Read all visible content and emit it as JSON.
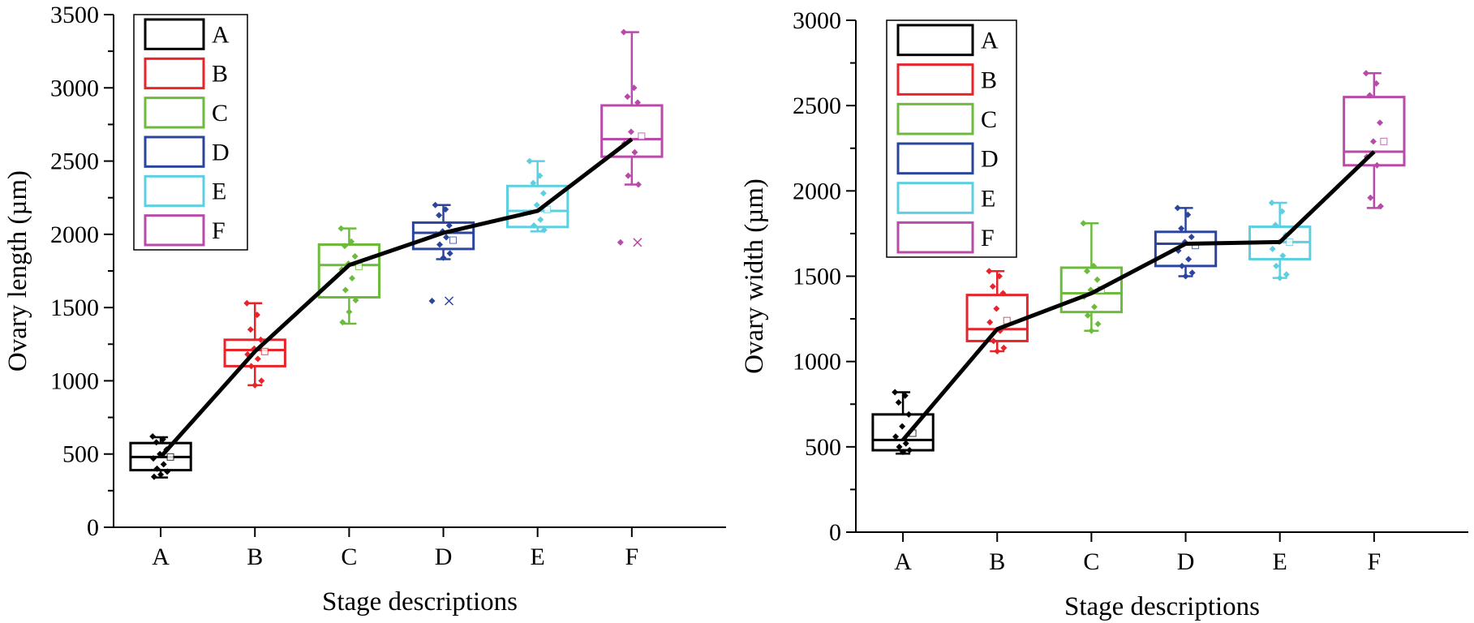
{
  "figure": {
    "panel_count": 2
  },
  "chart_data": [
    {
      "type": "box",
      "xlabel": "Stage descriptions",
      "ylabel": "Ovary length (µm)",
      "ylim": [
        0,
        3500
      ],
      "yticks": [
        0,
        500,
        1000,
        1500,
        2000,
        2500,
        3000,
        3500
      ],
      "categories": [
        "A",
        "B",
        "C",
        "D",
        "E",
        "F"
      ],
      "colors": [
        "#000000",
        "#e8232a",
        "#6cbb3c",
        "#2b459c",
        "#5ccfe0",
        "#b84aa8"
      ],
      "legend": {
        "position": "top-left",
        "entries": [
          "A",
          "B",
          "C",
          "D",
          "E",
          "F"
        ]
      },
      "boxes": [
        {
          "label": "A",
          "q1": 390,
          "median": 480,
          "q3": 575,
          "whisker_low": 340,
          "whisker_high": 615,
          "mean": 480,
          "points": [
            620,
            600,
            580,
            530,
            500,
            470,
            430,
            400,
            380,
            360,
            345
          ]
        },
        {
          "label": "B",
          "q1": 1100,
          "median": 1210,
          "q3": 1280,
          "whisker_low": 970,
          "whisker_high": 1530,
          "mean": 1200,
          "points": [
            1530,
            1450,
            1350,
            1280,
            1220,
            1180,
            1150,
            1100,
            1000,
            970
          ]
        },
        {
          "label": "C",
          "q1": 1570,
          "median": 1790,
          "q3": 1930,
          "whisker_low": 1390,
          "whisker_high": 2040,
          "mean": 1780,
          "points": [
            2040,
            1950,
            1920,
            1850,
            1800,
            1760,
            1700,
            1620,
            1550,
            1470,
            1400
          ]
        },
        {
          "label": "D",
          "q1": 1900,
          "median": 2010,
          "q3": 2080,
          "whisker_low": 1830,
          "whisker_high": 2200,
          "mean": 1960,
          "points": [
            2200,
            2170,
            2130,
            2060,
            2020,
            2000,
            1980,
            1930,
            1870,
            1840
          ],
          "outliers": [
            1545
          ]
        },
        {
          "label": "E",
          "q1": 2050,
          "median": 2160,
          "q3": 2330,
          "whisker_low": 2020,
          "whisker_high": 2500,
          "mean": 2170,
          "points": [
            2500,
            2400,
            2350,
            2280,
            2200,
            2150,
            2100,
            2060,
            2030
          ]
        },
        {
          "label": "F",
          "q1": 2530,
          "median": 2650,
          "q3": 2880,
          "whisker_low": 2340,
          "whisker_high": 3380,
          "mean": 2670,
          "points": [
            3380,
            3000,
            2940,
            2900,
            2700,
            2620,
            2560,
            2400,
            2340
          ],
          "outliers": [
            1945
          ]
        }
      ],
      "trend_line": [
        480,
        1200,
        1790,
        2010,
        2160,
        2650
      ]
    },
    {
      "type": "box",
      "xlabel": "Stage descriptions",
      "ylabel": "Ovary width (µm)",
      "ylim": [
        0,
        3000
      ],
      "yticks": [
        0,
        500,
        1000,
        1500,
        2000,
        2500,
        3000
      ],
      "categories": [
        "A",
        "B",
        "C",
        "D",
        "E",
        "F"
      ],
      "colors": [
        "#000000",
        "#e8232a",
        "#6cbb3c",
        "#2b459c",
        "#5ccfe0",
        "#b84aa8"
      ],
      "legend": {
        "position": "top-left",
        "entries": [
          "A",
          "B",
          "C",
          "D",
          "E",
          "F"
        ]
      },
      "boxes": [
        {
          "label": "A",
          "q1": 480,
          "median": 540,
          "q3": 690,
          "whisker_low": 460,
          "whisker_high": 820,
          "mean": 580,
          "points": [
            820,
            800,
            760,
            690,
            620,
            560,
            520,
            500,
            480,
            470
          ]
        },
        {
          "label": "B",
          "q1": 1120,
          "median": 1190,
          "q3": 1390,
          "whisker_low": 1060,
          "whisker_high": 1530,
          "mean": 1240,
          "points": [
            1530,
            1500,
            1440,
            1400,
            1310,
            1230,
            1180,
            1120,
            1080,
            1060
          ]
        },
        {
          "label": "C",
          "q1": 1290,
          "median": 1400,
          "q3": 1550,
          "whisker_low": 1180,
          "whisker_high": 1810,
          "mean": 1420,
          "points": [
            1810,
            1560,
            1530,
            1480,
            1420,
            1380,
            1320,
            1270,
            1220,
            1180
          ]
        },
        {
          "label": "D",
          "q1": 1560,
          "median": 1690,
          "q3": 1760,
          "whisker_low": 1500,
          "whisker_high": 1900,
          "mean": 1680,
          "points": [
            1900,
            1860,
            1780,
            1730,
            1700,
            1650,
            1600,
            1560,
            1520,
            1500
          ]
        },
        {
          "label": "E",
          "q1": 1600,
          "median": 1700,
          "q3": 1790,
          "whisker_low": 1490,
          "whisker_high": 1930,
          "mean": 1700,
          "points": [
            1930,
            1880,
            1800,
            1740,
            1700,
            1660,
            1620,
            1560,
            1510,
            1490
          ]
        },
        {
          "label": "F",
          "q1": 2150,
          "median": 2230,
          "q3": 2550,
          "whisker_low": 1900,
          "whisker_high": 2690,
          "mean": 2290,
          "points": [
            2690,
            2630,
            2560,
            2400,
            2290,
            2200,
            2150,
            1960,
            1910
          ]
        }
      ],
      "trend_line": [
        540,
        1190,
        1400,
        1690,
        1700,
        2230
      ]
    }
  ]
}
